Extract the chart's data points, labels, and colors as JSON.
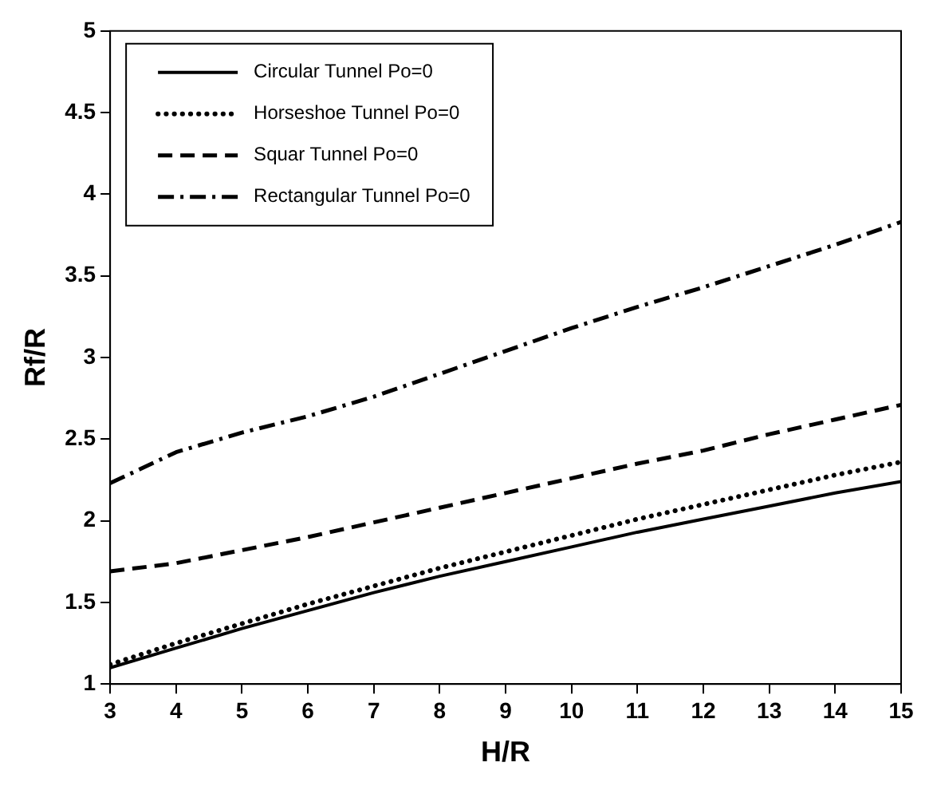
{
  "chart_data": {
    "type": "line",
    "xlabel": "H/R",
    "ylabel": "Rf/R",
    "x": [
      3,
      4,
      5,
      6,
      7,
      8,
      9,
      10,
      11,
      12,
      13,
      14,
      15
    ],
    "xlim": [
      3,
      15
    ],
    "xticks": [
      3,
      4,
      5,
      6,
      7,
      8,
      9,
      10,
      11,
      12,
      13,
      14,
      15
    ],
    "ylim": [
      1,
      5
    ],
    "yticks": [
      1,
      1.5,
      2,
      2.5,
      3,
      3.5,
      4,
      4.5,
      5
    ],
    "grid": false,
    "legend": "top left",
    "marker": "none",
    "series": [
      {
        "name": "Circular Tunnel Po=0",
        "color": "#000000",
        "line_style": "solid",
        "values": [
          1.1,
          1.22,
          1.34,
          1.45,
          1.56,
          1.66,
          1.75,
          1.84,
          1.93,
          2.01,
          2.09,
          2.17,
          2.24
        ]
      },
      {
        "name": "Horseshoe Tunnel Po=0",
        "color": "#000000",
        "line_style": "dotted",
        "values": [
          1.12,
          1.25,
          1.37,
          1.49,
          1.6,
          1.71,
          1.81,
          1.91,
          2.01,
          2.1,
          2.19,
          2.28,
          2.36
        ]
      },
      {
        "name": "Squar Tunnel Po=0",
        "color": "#000000",
        "line_style": "dashed",
        "values": [
          1.69,
          1.74,
          1.82,
          1.9,
          1.99,
          2.08,
          2.17,
          2.26,
          2.35,
          2.43,
          2.53,
          2.62,
          2.71
        ]
      },
      {
        "name": "Rectangular Tunnel Po=0",
        "color": "#000000",
        "line_style": "dashdot",
        "values": [
          2.23,
          2.42,
          2.54,
          2.64,
          2.76,
          2.9,
          3.04,
          3.18,
          3.31,
          3.43,
          3.56,
          3.69,
          3.83
        ]
      }
    ]
  }
}
